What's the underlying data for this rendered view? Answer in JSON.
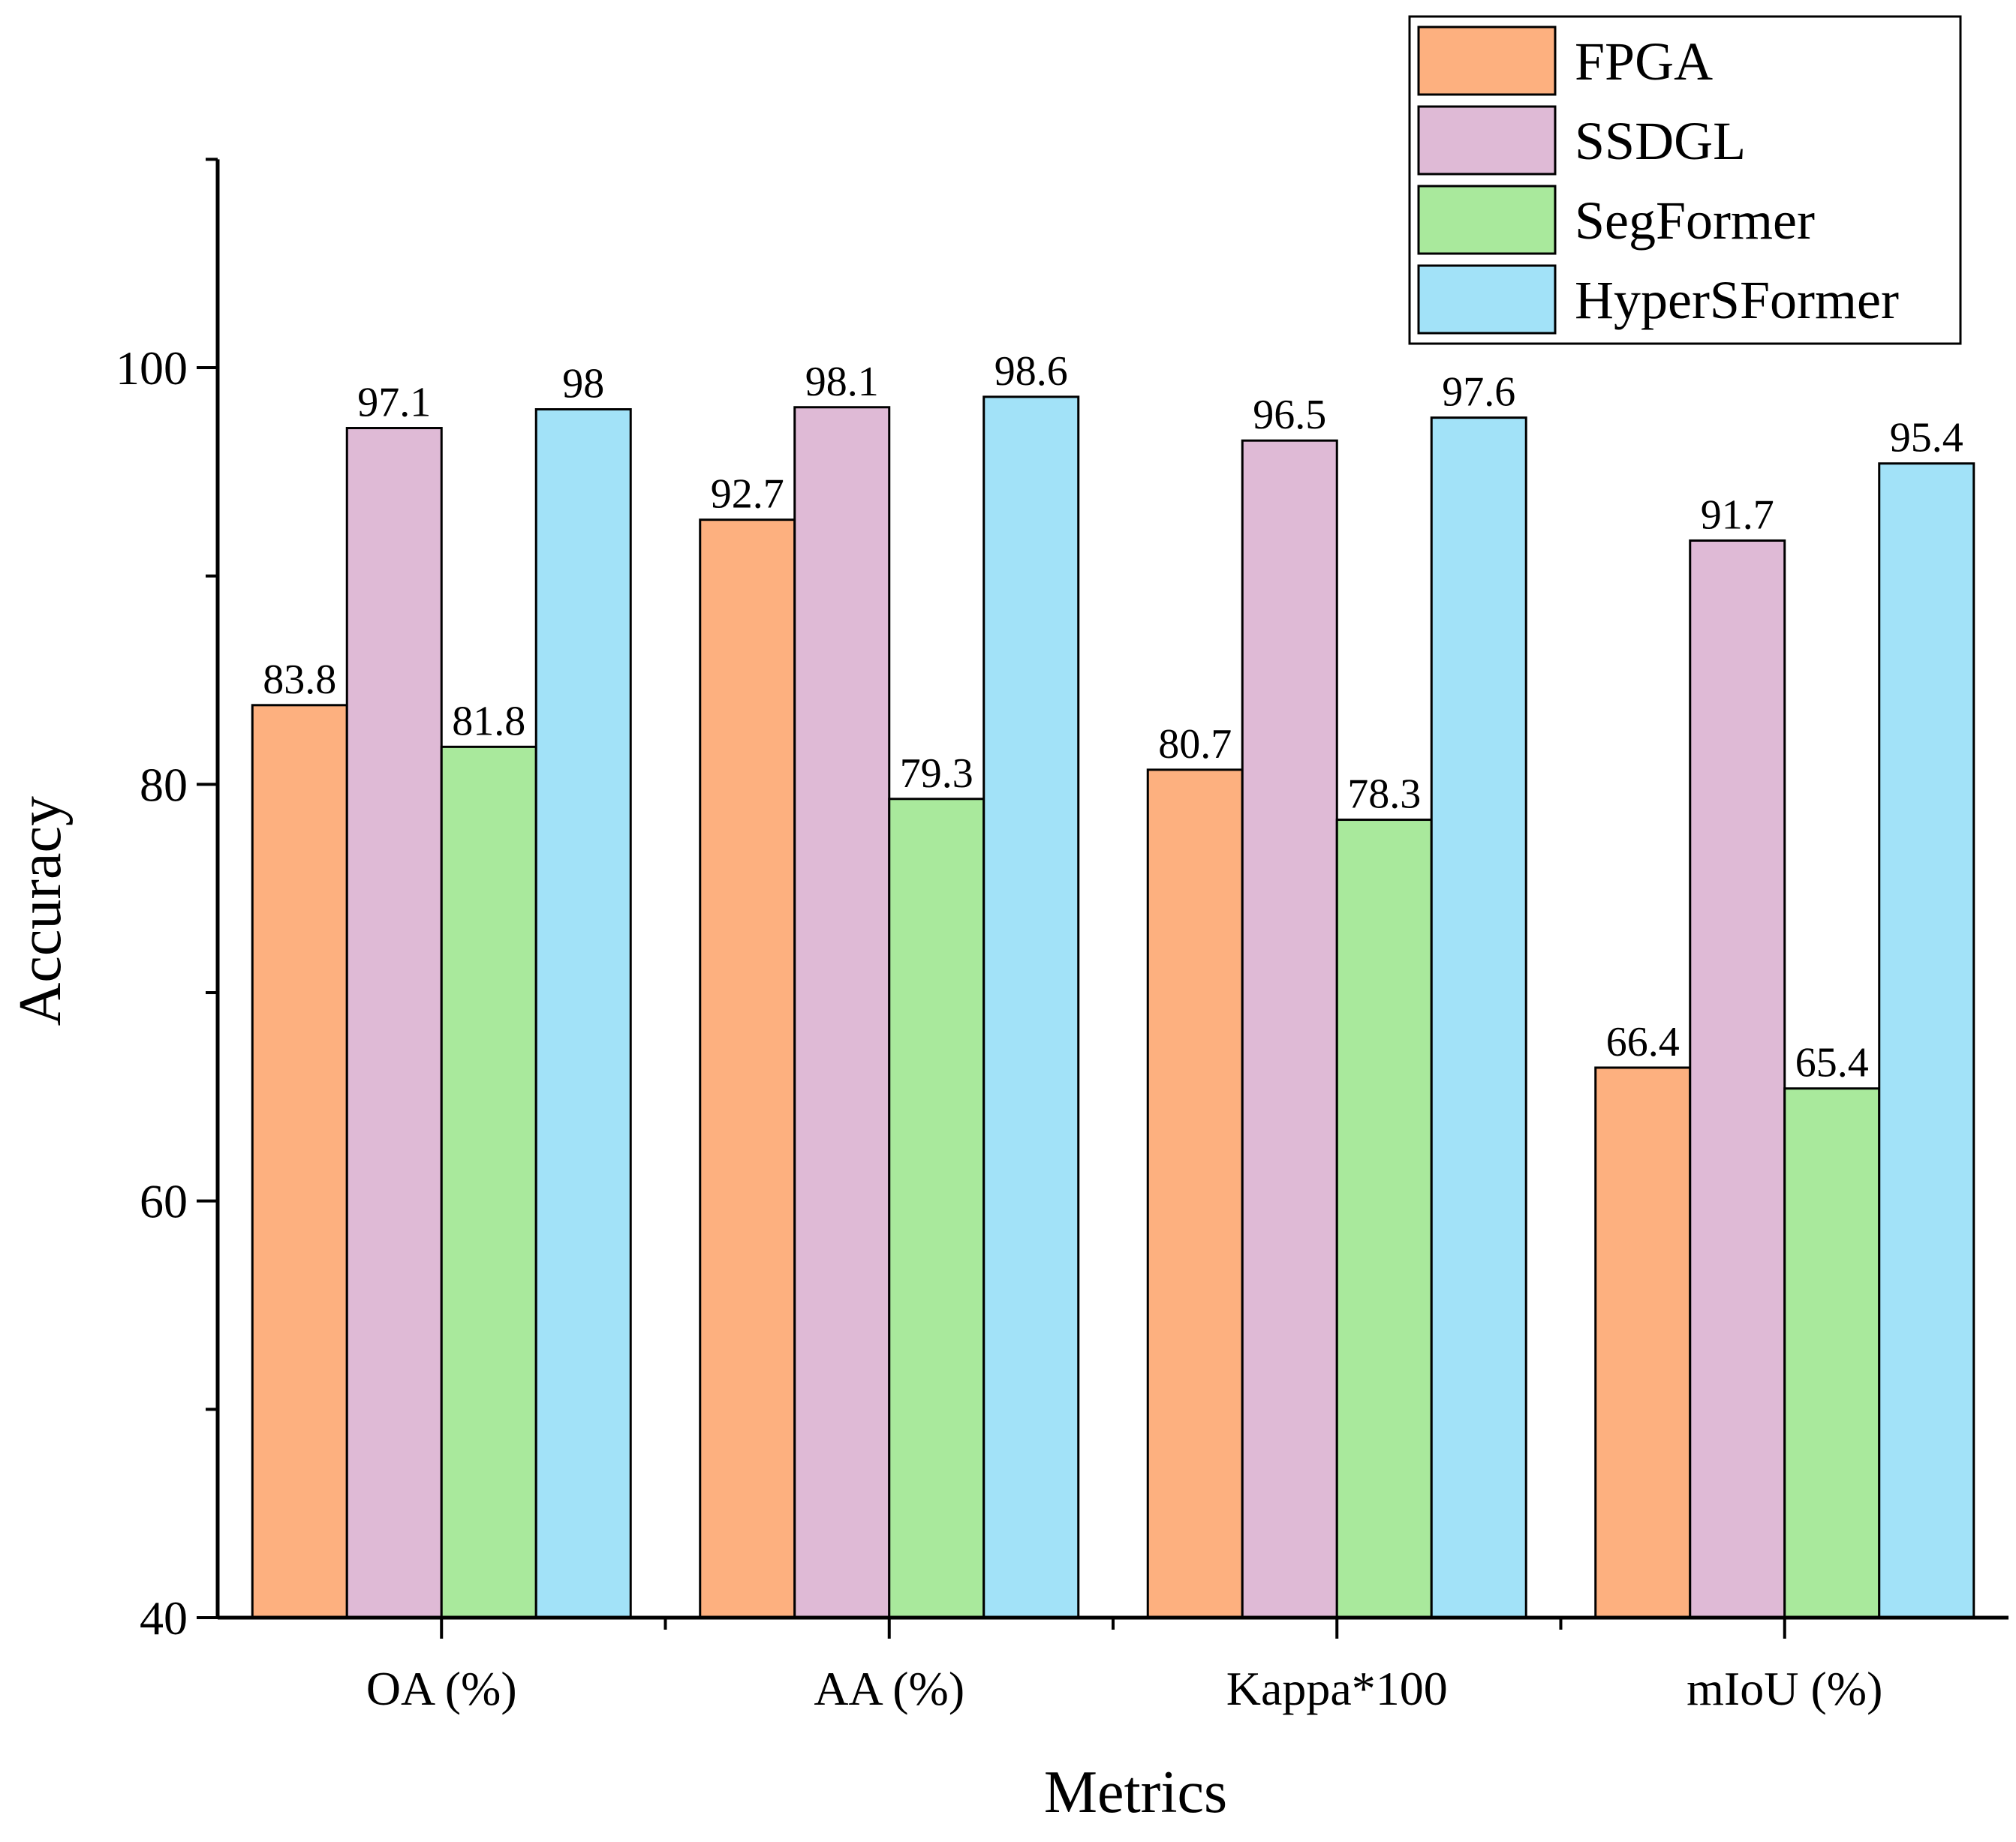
{
  "chart_data": {
    "type": "bar",
    "title": "",
    "xlabel": "Metrics",
    "ylabel": "Accuracy",
    "ylim": [
      40,
      110
    ],
    "yticks": [
      40,
      60,
      80,
      100
    ],
    "categories": [
      "OA (%)",
      "AA (%)",
      "Kappa*100",
      "mIoU (%)"
    ],
    "series": [
      {
        "name": "FPGA",
        "color": "#FDB07F",
        "values": [
          83.8,
          92.7,
          80.7,
          66.4
        ]
      },
      {
        "name": "SSDGL",
        "color": "#DFBAD6",
        "values": [
          97.1,
          98.1,
          96.5,
          91.7
        ]
      },
      {
        "name": "SegFormer",
        "color": "#A9E99C",
        "values": [
          81.8,
          79.3,
          78.3,
          65.4
        ]
      },
      {
        "name": "HyperSFormer",
        "color": "#A2E2F8",
        "values": [
          98,
          98.6,
          97.6,
          95.4
        ]
      }
    ],
    "legend_position": "top-right",
    "grid": false
  }
}
